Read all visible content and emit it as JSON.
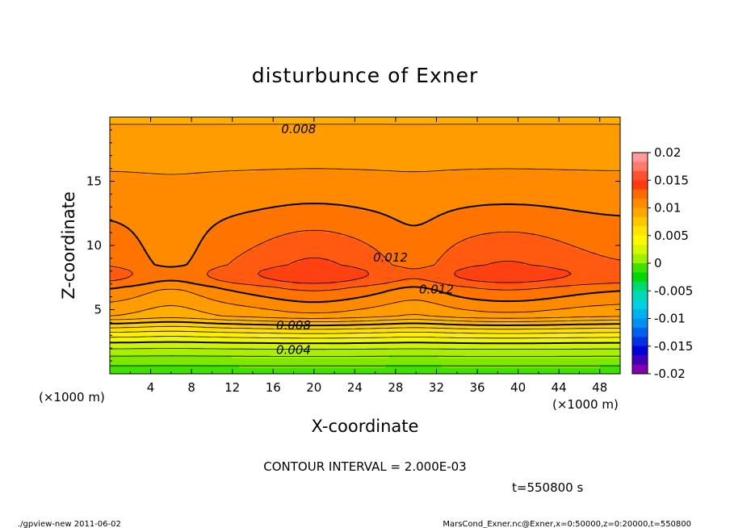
{
  "chart_data": {
    "type": "contour",
    "title": "disturbunce of Exner",
    "xlabel": "X-coordinate",
    "ylabel": "Z-coordinate",
    "x_unit": "(×1000 m)",
    "y_unit": "(×1000 m)",
    "xlim": [
      0,
      50
    ],
    "ylim": [
      0,
      20
    ],
    "x_ticks": [
      "4",
      "8",
      "12",
      "16",
      "20",
      "24",
      "28",
      "32",
      "36",
      "40",
      "44",
      "48"
    ],
    "y_ticks": [
      "5",
      "10",
      "15"
    ],
    "contour_interval_text": "CONTOUR INTERVAL = 2.000E-03",
    "time_text": "t=550800 s",
    "footer_left": "./gpview-new   2011-06-02",
    "footer_right": "MarsCond_Exner.nc@Exner,x=0:50000,z=0:20000,t=550800",
    "contour_labels": [
      "0.008",
      "0.012",
      "0.012",
      "0.008",
      "0.004"
    ],
    "colorbar": {
      "labels": [
        "0.02",
        "0.015",
        "0.01",
        "0.005",
        "0",
        "-0.005",
        "-0.01",
        "-0.015",
        "-0.02"
      ],
      "colors": [
        "#ff9a9a",
        "#ff7a6a",
        "#ff5030",
        "#ff3a10",
        "#ff6a00",
        "#ff8c00",
        "#ffa800",
        "#ffc800",
        "#ffe400",
        "#fff800",
        "#d8f800",
        "#a0f000",
        "#40e000",
        "#00d800",
        "#00d870",
        "#00d8b8",
        "#00d0e0",
        "#00b0f0",
        "#0090f0",
        "#0060f0",
        "#0030e0",
        "#0000d8",
        "#4000b8",
        "#8000b0"
      ]
    },
    "bands": [
      {
        "level": 0.0,
        "color": "#40e000"
      },
      {
        "level": 0.001,
        "color": "#80e800"
      },
      {
        "level": 0.002,
        "color": "#a8f000"
      },
      {
        "level": 0.003,
        "color": "#d0f400"
      },
      {
        "level": 0.004,
        "color": "#f0f800"
      },
      {
        "level": 0.005,
        "color": "#fff000"
      },
      {
        "level": 0.006,
        "color": "#ffe000"
      },
      {
        "level": 0.007,
        "color": "#ffd000"
      },
      {
        "level": 0.008,
        "color": "#ffc000"
      },
      {
        "level": 0.009,
        "color": "#ffae00"
      },
      {
        "level": 0.01,
        "color": "#ff9c00"
      },
      {
        "level": 0.011,
        "color": "#ff8a00"
      },
      {
        "level": 0.012,
        "color": "#ff7400"
      },
      {
        "level": 0.013,
        "color": "#ff5a10"
      },
      {
        "level": 0.014,
        "color": "#ff4010"
      }
    ]
  }
}
